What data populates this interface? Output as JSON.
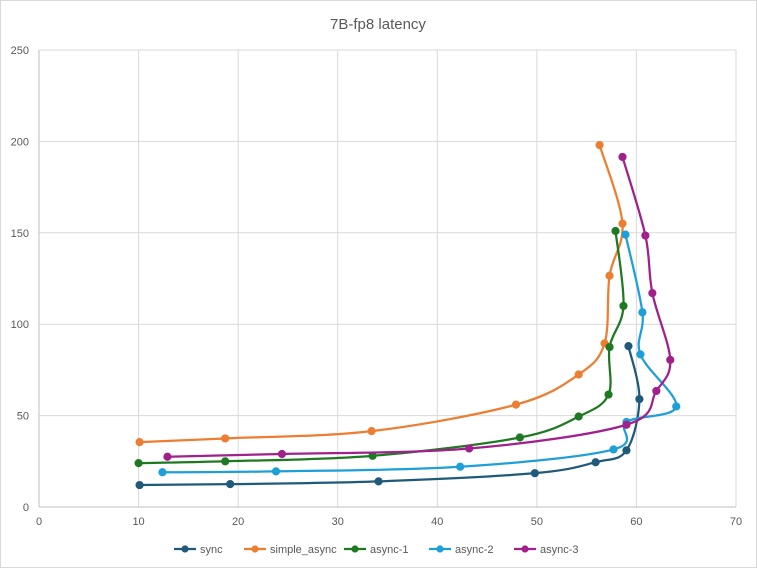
{
  "chart_data": {
    "type": "scatter",
    "title": "7B-fp8 latency",
    "xlabel": "",
    "ylabel": "",
    "xlim": [
      0,
      70
    ],
    "ylim": [
      0,
      250
    ],
    "x_ticks": [
      "0",
      "10",
      "20",
      "30",
      "40",
      "50",
      "60",
      "70"
    ],
    "y_ticks": [
      "0",
      "50",
      "100",
      "150",
      "200",
      "250"
    ],
    "grid": true,
    "smooth_lines": true,
    "legend_position": "bottom",
    "series": [
      {
        "name": "sync",
        "color": "#1f5a7a",
        "points": [
          [
            10.1,
            12
          ],
          [
            19.2,
            12.5
          ],
          [
            34.1,
            14
          ],
          [
            49.8,
            18.5
          ],
          [
            55.9,
            24.5
          ],
          [
            59.0,
            31
          ],
          [
            60.3,
            59
          ],
          [
            59.2,
            88
          ]
        ]
      },
      {
        "name": "simple_async",
        "color": "#ed7d31",
        "points": [
          [
            10.1,
            35.5
          ],
          [
            18.7,
            37.5
          ],
          [
            33.4,
            41.5
          ],
          [
            47.9,
            56
          ],
          [
            54.2,
            72.5
          ],
          [
            56.8,
            89.5
          ],
          [
            57.3,
            126.5
          ],
          [
            58.6,
            155
          ],
          [
            56.3,
            198
          ]
        ]
      },
      {
        "name": "async-1",
        "color": "#1e7a22",
        "points": [
          [
            10.0,
            24
          ],
          [
            18.7,
            25
          ],
          [
            33.5,
            28
          ],
          [
            48.3,
            38
          ],
          [
            54.2,
            49.5
          ],
          [
            57.2,
            61.5
          ],
          [
            57.3,
            87.5
          ],
          [
            58.7,
            110
          ],
          [
            57.9,
            151
          ]
        ]
      },
      {
        "name": "async-2",
        "color": "#1d9fd8",
        "points": [
          [
            12.4,
            19
          ],
          [
            23.8,
            19.5
          ],
          [
            42.3,
            22
          ],
          [
            57.7,
            31.5
          ],
          [
            59.0,
            46.5
          ],
          [
            64.0,
            55
          ],
          [
            60.4,
            83.5
          ],
          [
            60.6,
            106.5
          ],
          [
            58.9,
            149
          ]
        ]
      },
      {
        "name": "async-3",
        "color": "#a0208c",
        "points": [
          [
            12.9,
            27.5
          ],
          [
            24.4,
            29
          ],
          [
            43.2,
            32
          ],
          [
            59.0,
            45
          ],
          [
            62.0,
            63.5
          ],
          [
            63.4,
            80.5
          ],
          [
            61.6,
            117
          ],
          [
            60.9,
            148.5
          ],
          [
            58.6,
            191.5
          ]
        ]
      }
    ]
  }
}
